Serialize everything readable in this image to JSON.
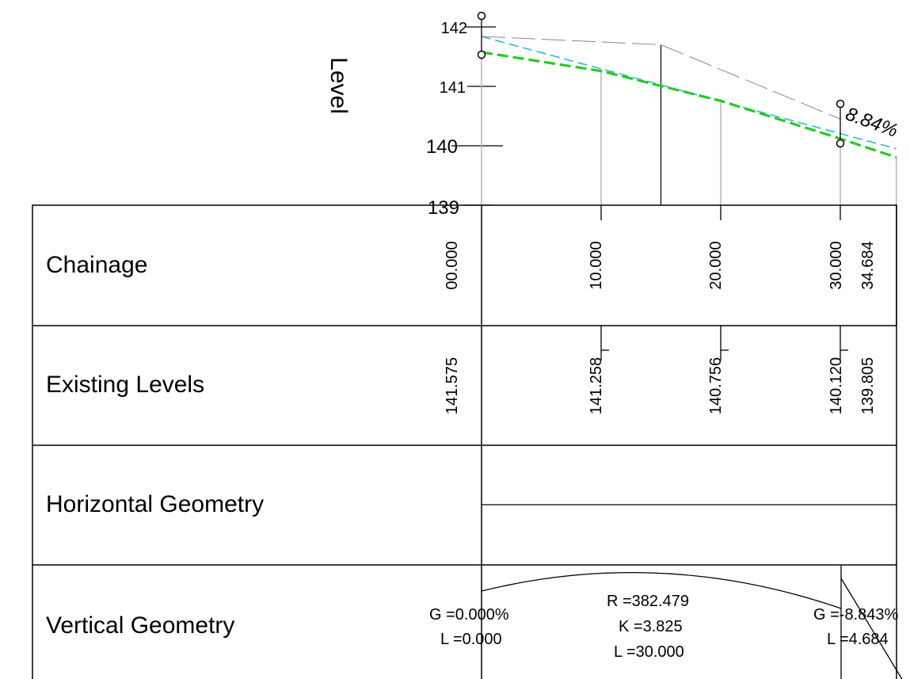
{
  "chart_data": {
    "type": "line",
    "ylabel": "Level",
    "ylim": [
      139,
      142.3
    ],
    "y_ticks": [
      "139",
      "140",
      "141",
      "142"
    ],
    "xlim": [
      0,
      34.684
    ],
    "grade_label": "8.84%",
    "series": [
      {
        "name": "",
        "color": "#2fb4e9",
        "style": "dashed",
        "x": [
          0,
          34.684
        ],
        "y": [
          141.84,
          139.95
        ]
      },
      {
        "name": "",
        "color": "#22cc22",
        "style": "dashed",
        "x": [
          0,
          10,
          20,
          30,
          34.684
        ],
        "y": [
          141.575,
          141.258,
          140.756,
          140.12,
          139.805
        ]
      },
      {
        "name": "",
        "color": "#888888",
        "style": "dashed",
        "x": [
          0,
          15,
          30
        ],
        "y": [
          141.84,
          141.7,
          140.45
        ]
      }
    ],
    "rows": {
      "chainage": {
        "label": "Chainage",
        "x": [
          0,
          10,
          20,
          30,
          34.684
        ],
        "values": [
          "00.000",
          "10.000",
          "20.000",
          "30.000",
          "34.684"
        ]
      },
      "existing": {
        "label": "Existing Levels",
        "x": [
          0,
          10,
          20,
          30,
          34.684
        ],
        "values": [
          "141.575",
          "141.258",
          "140.756",
          "140.120",
          "139.805"
        ]
      },
      "horizontal": {
        "label": "Horizontal Geometry"
      },
      "vertical": {
        "label": "Vertical Geometry",
        "start": {
          "g": "G =0.000%",
          "l": "L =0.000"
        },
        "curve": {
          "r": "R =382.479",
          "k": "K =3.825",
          "l": "L =30.000"
        },
        "end": {
          "g": "G =-8.843%",
          "l": "L =4.684"
        }
      }
    }
  }
}
